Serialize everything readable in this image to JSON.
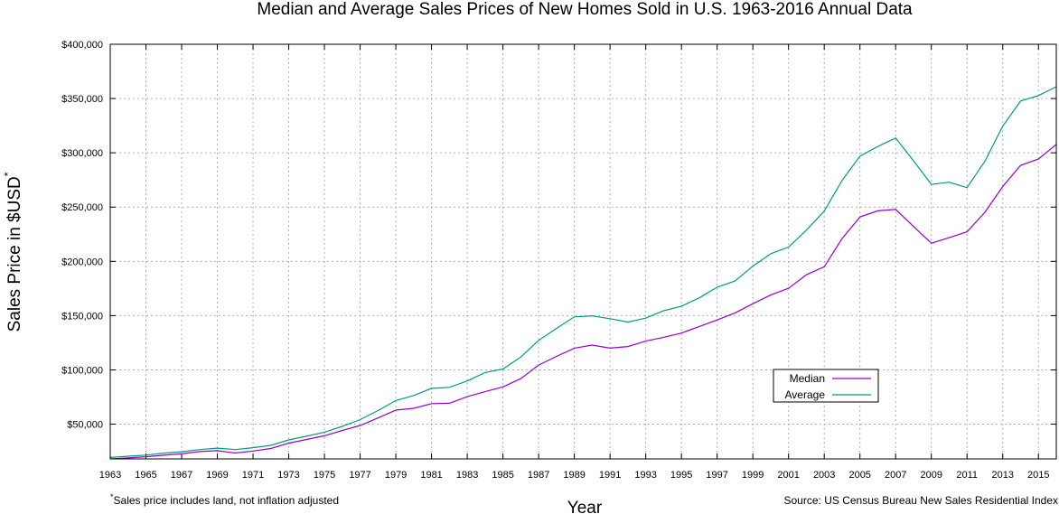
{
  "chart_data": {
    "type": "line",
    "title": "Median and Average Sales Prices of New Homes Sold in U.S. 1963-2016 Annual Data",
    "xlabel": "Year",
    "ylabel": "Sales Price in $USD",
    "ylabel_superscript": "*",
    "footnote_marker": "*",
    "footnote": "Sales price includes land, not inflation adjusted",
    "source": "Source: US Census Bureau New Sales Residential Index",
    "xlim": [
      1963,
      2016
    ],
    "ylim": [
      18000,
      400000
    ],
    "x_ticks": [
      1963,
      1965,
      1967,
      1969,
      1971,
      1973,
      1975,
      1977,
      1979,
      1981,
      1983,
      1985,
      1987,
      1989,
      1991,
      1993,
      1995,
      1997,
      1999,
      2001,
      2003,
      2005,
      2007,
      2009,
      2011,
      2013,
      2015
    ],
    "y_ticks": [
      {
        "value": 50000,
        "label": "$50,000"
      },
      {
        "value": 100000,
        "label": "$100,000"
      },
      {
        "value": 150000,
        "label": "$150,000"
      },
      {
        "value": 200000,
        "label": "$200,000"
      },
      {
        "value": 250000,
        "label": "$250,000"
      },
      {
        "value": 300000,
        "label": "$300,000"
      },
      {
        "value": 350000,
        "label": "$350,000"
      },
      {
        "value": 400000,
        "label": "$400,000"
      }
    ],
    "grid": true,
    "legend_position": "lower-right",
    "x": [
      1963,
      1964,
      1965,
      1966,
      1967,
      1968,
      1969,
      1970,
      1971,
      1972,
      1973,
      1974,
      1975,
      1976,
      1977,
      1978,
      1979,
      1980,
      1981,
      1982,
      1983,
      1984,
      1985,
      1986,
      1987,
      1988,
      1989,
      1990,
      1991,
      1992,
      1993,
      1994,
      1995,
      1996,
      1997,
      1998,
      1999,
      2000,
      2001,
      2002,
      2003,
      2004,
      2005,
      2006,
      2007,
      2008,
      2009,
      2010,
      2011,
      2012,
      2013,
      2014,
      2015,
      2016
    ],
    "series": [
      {
        "name": "Median",
        "color": "#9400d3",
        "values": [
          18000,
          18900,
          20000,
          21400,
          22700,
          24700,
          25600,
          23400,
          25200,
          27600,
          32500,
          35900,
          39300,
          44200,
          48800,
          55700,
          62900,
          64600,
          68900,
          69300,
          75300,
          79900,
          84300,
          92000,
          104500,
          112500,
          120000,
          122900,
          120000,
          121500,
          126500,
          130000,
          133900,
          140000,
          146000,
          152500,
          161000,
          169000,
          175200,
          187600,
          195000,
          221000,
          240900,
          246500,
          247900,
          232100,
          216700,
          221800,
          227200,
          245200,
          268900,
          288500,
          294200,
          307800
        ]
      },
      {
        "name": "Average",
        "color": "#009e73",
        "values": [
          19300,
          20500,
          21500,
          23300,
          24600,
          26600,
          27900,
          26600,
          28300,
          30500,
          35500,
          38900,
          42600,
          48000,
          54200,
          62500,
          71800,
          76400,
          83000,
          83900,
          89800,
          97600,
          100800,
          111900,
          127200,
          138300,
          148800,
          149800,
          147200,
          144100,
          147700,
          154500,
          158700,
          166400,
          176200,
          181900,
          195600,
          207000,
          213200,
          228700,
          246300,
          274500,
          297000,
          305900,
          313600,
          292600,
          270900,
          272900,
          267900,
          292200,
          324500,
          347700,
          352700,
          360900
        ]
      }
    ]
  }
}
